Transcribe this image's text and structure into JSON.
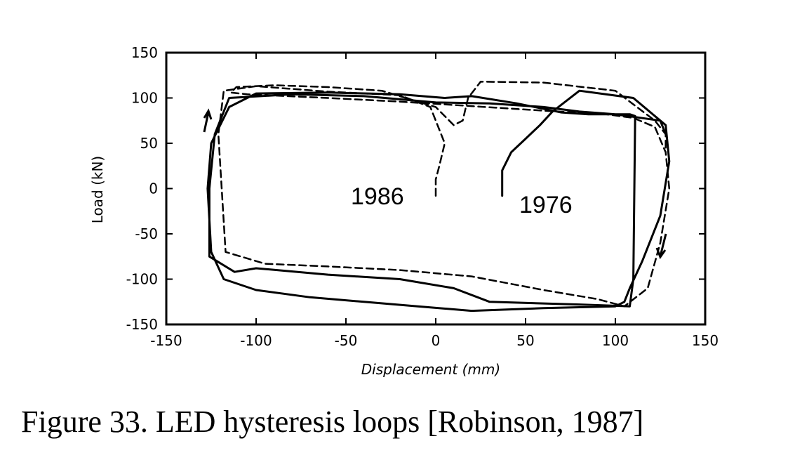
{
  "chart_data": {
    "type": "line",
    "title": "",
    "xlabel": "Displacement (mm)",
    "ylabel": "Load (kN)",
    "xlim": [
      -150,
      150
    ],
    "ylim": [
      -150,
      150
    ],
    "xticks": [
      "-150",
      "-100",
      "-50",
      "0",
      "50",
      "100",
      "150"
    ],
    "yticks": [
      "150",
      "100",
      "50",
      "0",
      "-50",
      "-100",
      "-150"
    ],
    "grid": false,
    "legend": "none",
    "series": [
      {
        "name": "1986",
        "style": "dashed",
        "x": [
          0,
          0,
          2,
          5,
          0,
          -3,
          -20,
          -60,
          -100,
          -118,
          -121,
          -117,
          -95,
          -60,
          -20,
          20,
          60,
          90,
          105,
          118,
          125,
          130,
          128,
          122,
          110,
          95,
          60,
          20,
          -20,
          -60,
          -105,
          -114,
          -111,
          -90,
          -60,
          -30,
          0,
          10,
          15,
          18,
          25,
          60,
          100,
          122,
          128,
          128
        ],
        "y": [
          -8,
          10,
          25,
          50,
          75,
          90,
          103,
          107,
          113,
          108,
          60,
          -70,
          -83,
          -86,
          -90,
          -97,
          -112,
          -122,
          -130,
          -110,
          -60,
          0,
          40,
          68,
          78,
          82,
          86,
          91,
          96,
          100,
          104,
          106,
          112,
          114,
          112,
          108,
          90,
          70,
          75,
          100,
          118,
          117,
          108,
          75,
          60,
          40
        ]
      },
      {
        "name": "1976",
        "style": "solid",
        "x": [
          37,
          37,
          42,
          50,
          58,
          65,
          80,
          110,
          128,
          130,
          125,
          115,
          108,
          105,
          100,
          60,
          20,
          -10,
          -40,
          -70,
          -100,
          -118,
          -125,
          -127,
          -125,
          -115,
          -100,
          -60,
          -20,
          5,
          20,
          45,
          70,
          85,
          100,
          108,
          111,
          110,
          108,
          80,
          30,
          10,
          -20,
          -60,
          -100,
          -112,
          -126,
          -126,
          -123,
          -115,
          -80,
          -40,
          0,
          30,
          60,
          80,
          100,
          125,
          128
        ],
        "y": [
          -8,
          20,
          40,
          55,
          70,
          85,
          108,
          100,
          70,
          30,
          -30,
          -80,
          -110,
          -125,
          -130,
          -132,
          -135,
          -130,
          -125,
          -120,
          -112,
          -100,
          -70,
          0,
          50,
          90,
          105,
          106,
          104,
          100,
          102,
          94,
          84,
          82,
          82,
          82,
          80,
          -100,
          -130,
          -128,
          -125,
          -110,
          -100,
          -95,
          -88,
          -92,
          -75,
          0,
          60,
          100,
          104,
          102,
          95,
          94,
          90,
          85,
          82,
          75,
          60
        ]
      }
    ],
    "annotations": [
      "1986",
      "1976"
    ]
  },
  "caption": "Figure 33.  LED hysteresis loops [Robinson, 1987]"
}
